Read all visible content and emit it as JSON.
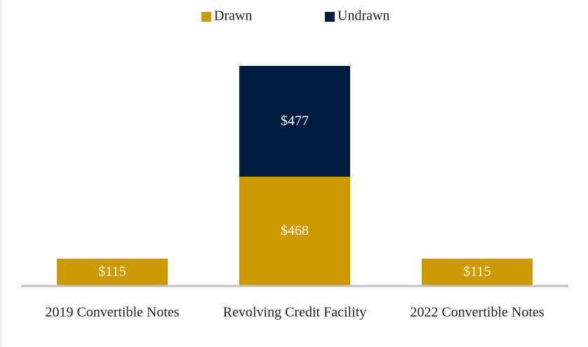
{
  "chart_data": {
    "type": "bar",
    "stacked": true,
    "categories": [
      "2019 Convertible Notes",
      "Revolving Credit Facility",
      "2022 Convertible Notes"
    ],
    "series": [
      {
        "name": "Drawn",
        "color": "#cc9a00",
        "values": [
          115,
          468,
          115
        ],
        "value_labels": [
          "$115",
          "$468",
          "$115"
        ]
      },
      {
        "name": "Undrawn",
        "color": "#001a40",
        "values": [
          null,
          477,
          null
        ],
        "value_labels": [
          null,
          "$477",
          null
        ]
      }
    ],
    "legend": "top"
  }
}
